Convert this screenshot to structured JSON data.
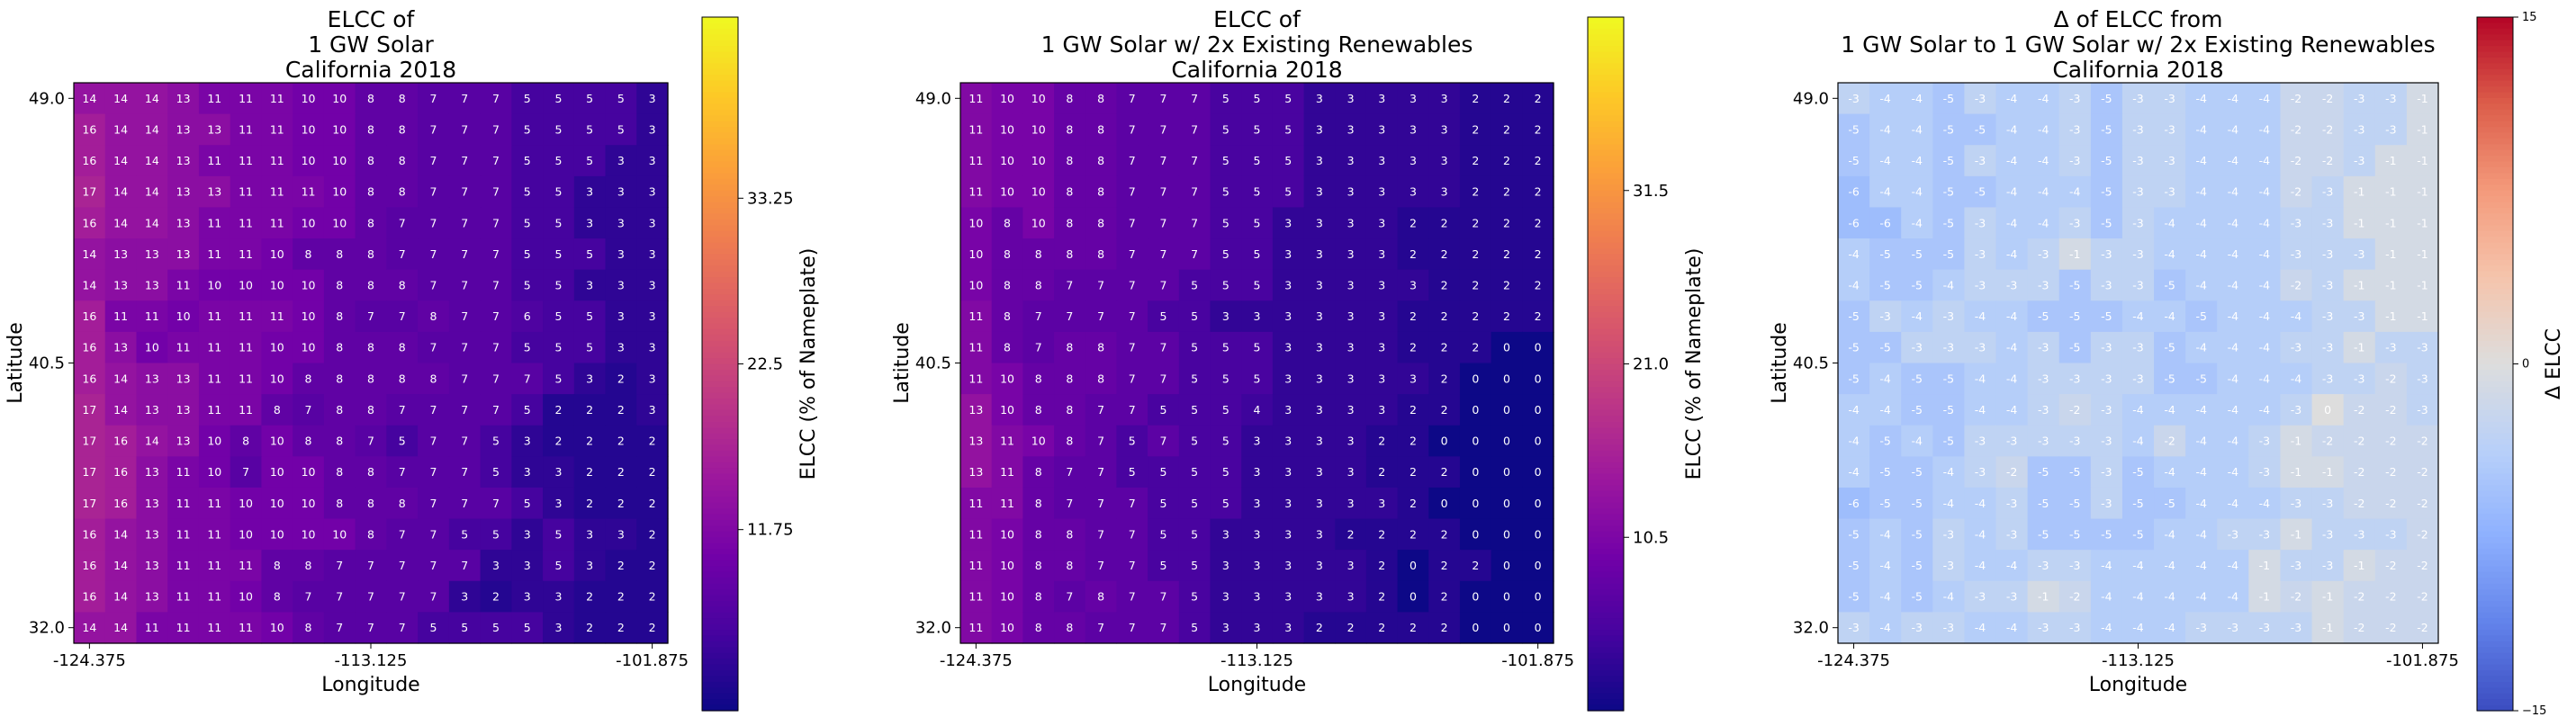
{
  "chart_data": [
    {
      "type": "heatmap",
      "title_lines": [
        "ELCC of",
        "1 GW Solar",
        "California 2018"
      ],
      "xlabel": "Longitude",
      "ylabel": "Latitude",
      "xticks": [
        "-124.375",
        "-113.125",
        "-101.875"
      ],
      "yticks": [
        "49.0",
        "40.5",
        "32.0"
      ],
      "colormap": "plasma",
      "vmin": 0,
      "vmax": 45,
      "colorbar_label": "ELCC (% of Nameplate)",
      "colorbar_ticks": [
        11.75,
        22.5,
        33.25
      ],
      "colorbar_tick_labels": [
        "11.75",
        "22.5",
        "33.25"
      ],
      "values": [
        [
          14,
          14,
          14,
          13,
          11,
          11,
          11,
          10,
          10,
          8,
          8,
          7,
          7,
          7,
          5,
          5,
          5,
          5,
          3
        ],
        [
          16,
          14,
          14,
          13,
          13,
          11,
          11,
          10,
          10,
          8,
          8,
          7,
          7,
          7,
          5,
          5,
          5,
          5,
          3
        ],
        [
          16,
          14,
          14,
          13,
          11,
          11,
          11,
          10,
          10,
          8,
          8,
          7,
          7,
          7,
          5,
          5,
          5,
          3,
          3
        ],
        [
          17,
          14,
          14,
          13,
          13,
          11,
          11,
          11,
          10,
          8,
          8,
          7,
          7,
          7,
          5,
          5,
          3,
          3,
          3
        ],
        [
          16,
          14,
          14,
          13,
          11,
          11,
          11,
          10,
          10,
          8,
          7,
          7,
          7,
          7,
          5,
          5,
          3,
          3,
          3
        ],
        [
          14,
          13,
          13,
          13,
          11,
          11,
          10,
          8,
          8,
          8,
          7,
          7,
          7,
          7,
          5,
          5,
          5,
          3,
          3
        ],
        [
          14,
          13,
          13,
          11,
          10,
          10,
          10,
          10,
          8,
          8,
          8,
          7,
          7,
          7,
          5,
          5,
          3,
          3,
          3
        ],
        [
          16,
          11,
          11,
          10,
          11,
          11,
          11,
          10,
          8,
          7,
          7,
          8,
          7,
          7,
          6,
          5,
          5,
          3,
          3
        ],
        [
          16,
          13,
          10,
          11,
          11,
          11,
          10,
          10,
          8,
          8,
          8,
          7,
          7,
          7,
          5,
          5,
          5,
          3,
          3
        ],
        [
          16,
          14,
          13,
          13,
          11,
          11,
          10,
          8,
          8,
          8,
          8,
          8,
          7,
          7,
          7,
          5,
          3,
          2,
          3
        ],
        [
          17,
          14,
          13,
          13,
          11,
          11,
          8,
          7,
          8,
          8,
          7,
          7,
          7,
          7,
          5,
          2,
          2,
          2,
          3
        ],
        [
          17,
          16,
          14,
          13,
          10,
          8,
          10,
          8,
          8,
          7,
          5,
          7,
          7,
          5,
          3,
          2,
          2,
          2,
          2
        ],
        [
          17,
          16,
          13,
          11,
          10,
          7,
          10,
          10,
          8,
          8,
          7,
          7,
          7,
          5,
          3,
          3,
          2,
          2,
          2
        ],
        [
          17,
          16,
          13,
          11,
          11,
          10,
          10,
          10,
          8,
          8,
          8,
          7,
          7,
          7,
          5,
          3,
          2,
          2,
          2
        ],
        [
          16,
          14,
          13,
          11,
          11,
          10,
          10,
          10,
          10,
          8,
          7,
          7,
          5,
          5,
          3,
          5,
          3,
          3,
          2
        ],
        [
          16,
          14,
          13,
          11,
          11,
          11,
          8,
          8,
          7,
          7,
          7,
          7,
          7,
          3,
          3,
          5,
          3,
          2,
          2
        ],
        [
          16,
          14,
          13,
          11,
          11,
          10,
          8,
          7,
          7,
          7,
          7,
          7,
          3,
          2,
          3,
          3,
          2,
          2,
          2
        ],
        [
          14,
          14,
          11,
          11,
          11,
          11,
          10,
          8,
          7,
          7,
          7,
          5,
          5,
          5,
          5,
          3,
          2,
          2,
          2
        ]
      ]
    },
    {
      "type": "heatmap",
      "title_lines": [
        "ELCC of",
        "1 GW Solar w/ 2x Existing Renewables",
        "California 2018"
      ],
      "xlabel": "Longitude",
      "ylabel": "Latitude",
      "xticks": [
        "-124.375",
        "-113.125",
        "-101.875"
      ],
      "yticks": [
        "49.0",
        "40.5",
        "32.0"
      ],
      "colormap": "plasma",
      "vmin": 0,
      "vmax": 42,
      "colorbar_label": "ELCC (% of Nameplate)",
      "colorbar_ticks": [
        10.5,
        21.0,
        31.5
      ],
      "colorbar_tick_labels": [
        "10.5",
        "21.0",
        "31.5"
      ],
      "values": [
        [
          11,
          10,
          10,
          8,
          8,
          7,
          7,
          7,
          5,
          5,
          5,
          3,
          3,
          3,
          3,
          3,
          2,
          2,
          2
        ],
        [
          11,
          10,
          10,
          8,
          8,
          7,
          7,
          7,
          5,
          5,
          5,
          3,
          3,
          3,
          3,
          3,
          2,
          2,
          2
        ],
        [
          11,
          10,
          10,
          8,
          8,
          7,
          7,
          7,
          5,
          5,
          5,
          3,
          3,
          3,
          3,
          3,
          2,
          2,
          2
        ],
        [
          11,
          10,
          10,
          8,
          8,
          7,
          7,
          7,
          5,
          5,
          5,
          3,
          3,
          3,
          3,
          3,
          2,
          2,
          2
        ],
        [
          10,
          8,
          10,
          8,
          8,
          7,
          7,
          7,
          5,
          5,
          3,
          3,
          3,
          3,
          2,
          2,
          2,
          2,
          2
        ],
        [
          10,
          8,
          8,
          8,
          8,
          7,
          7,
          7,
          5,
          5,
          3,
          3,
          3,
          3,
          2,
          2,
          2,
          2,
          2
        ],
        [
          10,
          8,
          8,
          7,
          7,
          7,
          7,
          5,
          5,
          5,
          3,
          3,
          3,
          3,
          3,
          2,
          2,
          2,
          2
        ],
        [
          11,
          8,
          7,
          7,
          7,
          7,
          5,
          5,
          3,
          3,
          3,
          3,
          3,
          3,
          2,
          2,
          2,
          2,
          2
        ],
        [
          11,
          8,
          7,
          8,
          8,
          7,
          7,
          5,
          5,
          5,
          3,
          3,
          3,
          3,
          2,
          2,
          2,
          0,
          0
        ],
        [
          11,
          10,
          8,
          8,
          8,
          7,
          7,
          5,
          5,
          5,
          3,
          3,
          3,
          3,
          3,
          2,
          0,
          0,
          0
        ],
        [
          13,
          10,
          8,
          8,
          7,
          7,
          5,
          5,
          5,
          4,
          3,
          3,
          3,
          3,
          2,
          2,
          0,
          0,
          0
        ],
        [
          13,
          11,
          10,
          8,
          7,
          5,
          7,
          5,
          5,
          3,
          3,
          3,
          3,
          2,
          2,
          0,
          0,
          0,
          0
        ],
        [
          13,
          11,
          8,
          7,
          7,
          5,
          5,
          5,
          5,
          3,
          3,
          3,
          3,
          2,
          2,
          2,
          0,
          0,
          0
        ],
        [
          11,
          11,
          8,
          7,
          7,
          7,
          5,
          5,
          5,
          3,
          3,
          3,
          3,
          3,
          2,
          0,
          0,
          0,
          0
        ],
        [
          11,
          10,
          8,
          8,
          7,
          7,
          5,
          5,
          3,
          3,
          3,
          3,
          2,
          2,
          2,
          2,
          0,
          0,
          0
        ],
        [
          11,
          10,
          8,
          8,
          7,
          7,
          5,
          5,
          3,
          3,
          3,
          3,
          3,
          2,
          0,
          2,
          2,
          0,
          0
        ],
        [
          11,
          10,
          8,
          7,
          8,
          7,
          7,
          5,
          3,
          3,
          3,
          3,
          3,
          2,
          0,
          2,
          0,
          0,
          0
        ],
        [
          11,
          10,
          8,
          8,
          7,
          7,
          7,
          5,
          3,
          3,
          3,
          2,
          2,
          2,
          2,
          2,
          0,
          0,
          0
        ]
      ]
    },
    {
      "type": "heatmap",
      "title_lines": [
        "Δ of ELCC from",
        "1 GW Solar to 1 GW Solar w/ 2x Existing Renewables",
        "California 2018"
      ],
      "xlabel": "Longitude",
      "ylabel": "Latitude",
      "xticks": [
        "-124.375",
        "-113.125",
        "-101.875"
      ],
      "yticks": [
        "49.0",
        "40.5",
        "32.0"
      ],
      "colormap": "coolwarm",
      "vmin": -15,
      "vmax": 15,
      "colorbar_label": "Δ ELCC",
      "colorbar_ticks": [
        15,
        0,
        -15
      ],
      "colorbar_tick_labels": [
        "15",
        "0",
        "−15"
      ],
      "values": [
        [
          -3,
          -4,
          -4,
          -5,
          -3,
          -4,
          -4,
          -3,
          -5,
          -3,
          -3,
          -4,
          -4,
          -4,
          -2,
          -2,
          -3,
          -3,
          -1
        ],
        [
          -5,
          -4,
          -4,
          -5,
          -5,
          -4,
          -4,
          -3,
          -5,
          -3,
          -3,
          -4,
          -4,
          -4,
          -2,
          -2,
          -3,
          -3,
          -1
        ],
        [
          -5,
          -4,
          -4,
          -5,
          -3,
          -4,
          -4,
          -3,
          -5,
          -3,
          -3,
          -4,
          -4,
          -4,
          -2,
          -2,
          -3,
          -1,
          -1
        ],
        [
          -6,
          -4,
          -4,
          -5,
          -5,
          -4,
          -4,
          -4,
          -5,
          -3,
          -3,
          -4,
          -4,
          -4,
          -2,
          -3,
          -1,
          -1,
          -1
        ],
        [
          -6,
          -6,
          -4,
          -5,
          -3,
          -4,
          -4,
          -3,
          -5,
          -3,
          -4,
          -4,
          -4,
          -4,
          -3,
          -3,
          -1,
          -1,
          -1
        ],
        [
          -4,
          -5,
          -5,
          -5,
          -3,
          -4,
          -3,
          -1,
          -3,
          -3,
          -4,
          -4,
          -4,
          -4,
          -3,
          -3,
          -3,
          -1,
          -1
        ],
        [
          -4,
          -5,
          -5,
          -4,
          -3,
          -3,
          -3,
          -5,
          -3,
          -3,
          -5,
          -4,
          -4,
          -4,
          -2,
          -3,
          -1,
          -1,
          -1
        ],
        [
          -5,
          -3,
          -4,
          -3,
          -4,
          -4,
          -5,
          -5,
          -5,
          -4,
          -4,
          -5,
          -4,
          -4,
          -4,
          -3,
          -3,
          -1,
          -1
        ],
        [
          -5,
          -5,
          -3,
          -3,
          -3,
          -4,
          -3,
          -5,
          -3,
          -3,
          -5,
          -4,
          -4,
          -4,
          -3,
          -3,
          -1,
          -3,
          -3
        ],
        [
          -5,
          -4,
          -5,
          -5,
          -4,
          -4,
          -3,
          -3,
          -3,
          -3,
          -5,
          -5,
          -4,
          -4,
          -4,
          -3,
          -3,
          -2,
          -3
        ],
        [
          -4,
          -4,
          -5,
          -5,
          -4,
          -4,
          -3,
          -2,
          -3,
          -4,
          -4,
          -4,
          -4,
          -4,
          -3,
          0,
          -2,
          -2,
          -3
        ],
        [
          -4,
          -5,
          -4,
          -5,
          -3,
          -3,
          -3,
          -3,
          -3,
          -4,
          -2,
          -4,
          -4,
          -3,
          -1,
          -2,
          -2,
          -2,
          -2
        ],
        [
          -4,
          -5,
          -5,
          -4,
          -3,
          -2,
          -5,
          -5,
          -3,
          -5,
          -4,
          -4,
          -4,
          -3,
          -1,
          -1,
          -2,
          -2,
          -2
        ],
        [
          -6,
          -5,
          -5,
          -4,
          -4,
          -3,
          -5,
          -5,
          -3,
          -5,
          -5,
          -4,
          -4,
          -4,
          -3,
          -3,
          -2,
          -2,
          -2
        ],
        [
          -5,
          -4,
          -5,
          -3,
          -4,
          -3,
          -5,
          -5,
          -5,
          -5,
          -4,
          -4,
          -3,
          -3,
          -1,
          -3,
          -3,
          -3,
          -2
        ],
        [
          -5,
          -4,
          -5,
          -3,
          -4,
          -4,
          -3,
          -3,
          -4,
          -4,
          -4,
          -4,
          -4,
          -1,
          -3,
          -3,
          -1,
          -2,
          -2
        ],
        [
          -5,
          -4,
          -5,
          -4,
          -3,
          -3,
          -1,
          -2,
          -4,
          -4,
          -4,
          -4,
          -4,
          -1,
          -2,
          -1,
          -2,
          -2,
          -2
        ],
        [
          -3,
          -4,
          -3,
          -3,
          -4,
          -4,
          -3,
          -3,
          -4,
          -4,
          -4,
          -3,
          -3,
          -3,
          -3,
          -1,
          -2,
          -2,
          -2
        ]
      ]
    }
  ]
}
